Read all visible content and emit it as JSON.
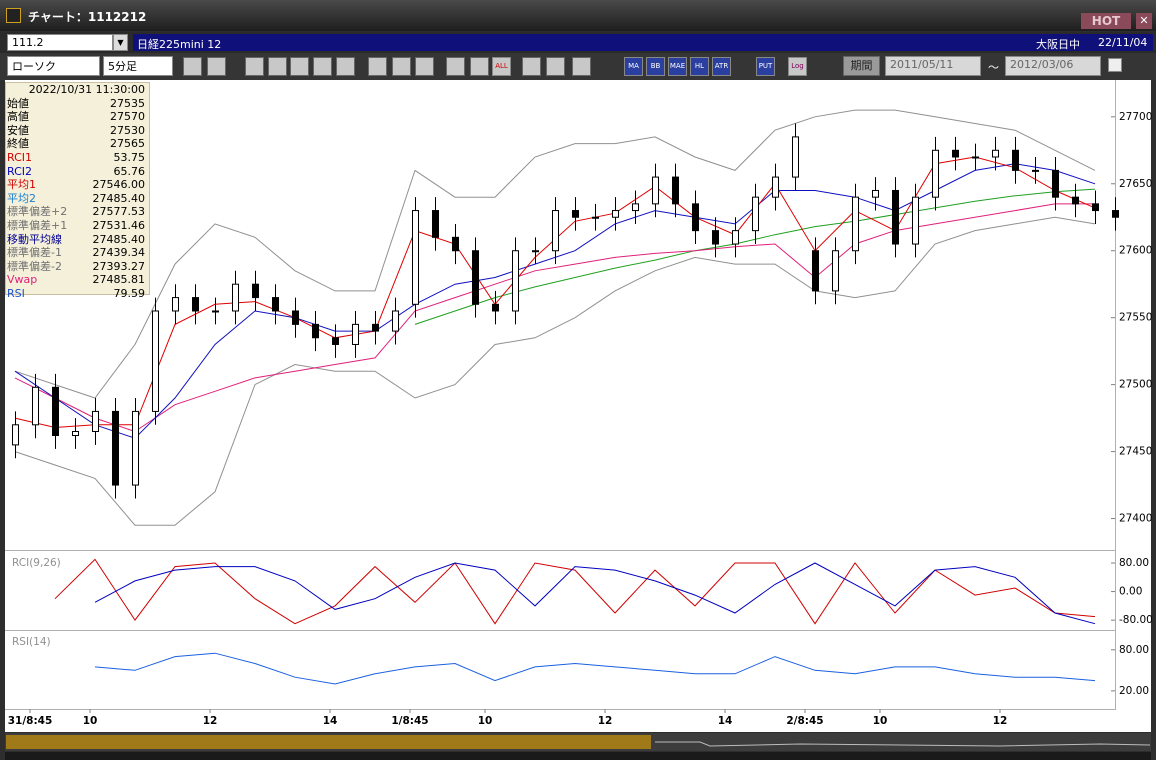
{
  "window": {
    "title": "チャート：1112212",
    "hot": "HOT"
  },
  "toolbar": {
    "code": "111.2",
    "product": "日経225mini 12",
    "market": "大阪日中",
    "date": "22/11/04",
    "chart_type": "ローソク",
    "interval": "5分足",
    "buttons": [
      "ALL",
      "MA",
      "BB",
      "MAE",
      "HL",
      "ATR",
      "PUT",
      "Log"
    ],
    "period": "期間",
    "from": "2011/05/11",
    "tilde": "〜",
    "to": "2012/03/06"
  },
  "info_panel": {
    "time": "2022/10/31 11:30:00",
    "rows": [
      {
        "label": "始値",
        "value": "27535",
        "color": "#000000"
      },
      {
        "label": "高値",
        "value": "27570",
        "color": "#000000"
      },
      {
        "label": "安値",
        "value": "27530",
        "color": "#000000"
      },
      {
        "label": "終値",
        "value": "27565",
        "color": "#000000"
      },
      {
        "label": "RCI1",
        "value": "53.75",
        "color": "#d00000"
      },
      {
        "label": "RCI2",
        "value": "65.76",
        "color": "#0000c0"
      },
      {
        "label": "平均1",
        "value": "27546.00",
        "color": "#d00000"
      },
      {
        "label": "平均2",
        "value": "27485.40",
        "color": "#1a7fd0"
      },
      {
        "label": "標準偏差+2",
        "value": "27577.53",
        "color": "#707070"
      },
      {
        "label": "標準偏差+1",
        "value": "27531.46",
        "color": "#707070"
      },
      {
        "label": "移動平均線",
        "value": "27485.40",
        "color": "#000090"
      },
      {
        "label": "標準偏差-1",
        "value": "27439.34",
        "color": "#707070"
      },
      {
        "label": "標準偏差-2",
        "value": "27393.27",
        "color": "#707070"
      },
      {
        "label": "Vwap",
        "value": "27485.81",
        "color": "#e0207a"
      },
      {
        "label": "RSI",
        "value": "79.59",
        "color": "#1a50d0"
      }
    ]
  },
  "chart_data": [
    {
      "type": "candlestick",
      "x": [
        0,
        4,
        8,
        12,
        16,
        20,
        24,
        28,
        32,
        36,
        40,
        44,
        48,
        52,
        56,
        60,
        64,
        68,
        72,
        76,
        80,
        84,
        88,
        92,
        96,
        100,
        104,
        108,
        112,
        116,
        120,
        124,
        128,
        132,
        136,
        140,
        144,
        148,
        152,
        156,
        160,
        164,
        168,
        172,
        176,
        180,
        184,
        188,
        192,
        196,
        200,
        204,
        208,
        212,
        216,
        220
      ],
      "open": [
        27455,
        27470,
        27498,
        27462,
        27465,
        27480,
        27425,
        27480,
        27555,
        27565,
        27555,
        27555,
        27575,
        27565,
        27555,
        27545,
        27535,
        27530,
        27545,
        27540,
        27560,
        27630,
        27610,
        27600,
        27560,
        27555,
        27600,
        27600,
        27630,
        27625,
        27625,
        27630,
        27635,
        27655,
        27635,
        27615,
        27605,
        27615,
        27640,
        27655,
        27600,
        27570,
        27600,
        27640,
        27645,
        27605,
        27640,
        27675,
        27670,
        27670,
        27675,
        27660,
        27660,
        27640,
        27635,
        27630
      ],
      "high": [
        27480,
        27508,
        27508,
        27475,
        27490,
        27490,
        27490,
        27565,
        27575,
        27575,
        27565,
        27585,
        27585,
        27575,
        27565,
        27555,
        27545,
        27555,
        27555,
        27565,
        27640,
        27640,
        27620,
        27610,
        27570,
        27610,
        27610,
        27640,
        27640,
        27635,
        27640,
        27645,
        27665,
        27665,
        27645,
        27625,
        27625,
        27650,
        27665,
        27695,
        27610,
        27610,
        27650,
        27655,
        27655,
        27650,
        27685,
        27685,
        27680,
        27685,
        27685,
        27670,
        27670,
        27650,
        27645,
        27640
      ],
      "low": [
        27445,
        27460,
        27452,
        27452,
        27455,
        27415,
        27415,
        27470,
        27545,
        27545,
        27545,
        27545,
        27555,
        27545,
        27535,
        27525,
        27520,
        27520,
        27530,
        27530,
        27550,
        27600,
        27590,
        27550,
        27545,
        27545,
        27590,
        27590,
        27615,
        27615,
        27615,
        27620,
        27625,
        27625,
        27605,
        27595,
        27595,
        27605,
        27630,
        27645,
        27560,
        27560,
        27590,
        27630,
        27595,
        27595,
        27630,
        27660,
        27660,
        27660,
        27650,
        27650,
        27630,
        27625,
        27620,
        27615
      ],
      "close": [
        27470,
        27498,
        27462,
        27465,
        27480,
        27425,
        27480,
        27555,
        27565,
        27555,
        27555,
        27575,
        27565,
        27555,
        27545,
        27535,
        27530,
        27545,
        27540,
        27555,
        27630,
        27610,
        27600,
        27560,
        27555,
        27600,
        27600,
        27630,
        27625,
        27625,
        27630,
        27635,
        27655,
        27635,
        27615,
        27605,
        27615,
        27640,
        27655,
        27685,
        27570,
        27600,
        27640,
        27645,
        27605,
        27640,
        27675,
        27670,
        27670,
        27675,
        27660,
        27660,
        27640,
        27635,
        27630,
        27625
      ],
      "series": [
        {
          "color": "#909090",
          "x": [
            0,
            8,
            16,
            24,
            32,
            40,
            48,
            56,
            64,
            72,
            80,
            88,
            96,
            104,
            112,
            120,
            128,
            136,
            144,
            152,
            160,
            168,
            176,
            184,
            192,
            200,
            208,
            216
          ],
          "values": [
            27510,
            27500,
            27490,
            27530,
            27590,
            27620,
            27610,
            27585,
            27570,
            27570,
            27660,
            27640,
            27640,
            27670,
            27680,
            27680,
            27685,
            27670,
            27660,
            27690,
            27700,
            27705,
            27705,
            27700,
            27695,
            27690,
            27675,
            27660
          ]
        },
        {
          "color": "#909090",
          "x": [
            0,
            8,
            16,
            24,
            32,
            40,
            48,
            56,
            64,
            72,
            80,
            88,
            96,
            104,
            112,
            120,
            128,
            136,
            144,
            152,
            160,
            168,
            176,
            184,
            192,
            200,
            208,
            216
          ],
          "values": [
            27450,
            27440,
            27430,
            27395,
            27395,
            27420,
            27500,
            27515,
            27510,
            27510,
            27490,
            27500,
            27530,
            27535,
            27550,
            27570,
            27585,
            27595,
            27590,
            27590,
            27570,
            27565,
            27570,
            27605,
            27615,
            27620,
            27625,
            27620
          ]
        },
        {
          "color": "#20a020",
          "x": [
            0,
            8,
            16,
            24,
            32,
            40,
            48,
            56,
            64,
            72,
            80,
            88,
            96,
            104,
            112,
            120,
            128,
            136,
            144,
            152,
            160,
            168,
            176,
            184,
            192,
            200,
            208,
            216
          ],
          "values": [
            null,
            null,
            null,
            null,
            null,
            null,
            null,
            null,
            null,
            null,
            27545,
            27555,
            27565,
            27573,
            27580,
            27587,
            27593,
            27600,
            27605,
            27612,
            27618,
            27622,
            27627,
            27632,
            27637,
            27641,
            27644,
            27646
          ]
        },
        {
          "color": "#e0207a",
          "x": [
            0,
            8,
            16,
            24,
            32,
            40,
            48,
            56,
            64,
            72,
            80,
            88,
            96,
            104,
            112,
            120,
            128,
            136,
            144,
            152,
            160,
            168,
            176,
            184,
            192,
            200,
            208,
            216
          ],
          "values": [
            27505,
            27490,
            27475,
            27465,
            27485,
            27495,
            27505,
            27510,
            27515,
            27520,
            27555,
            27565,
            27575,
            27585,
            27590,
            27595,
            27598,
            27600,
            27603,
            27605,
            27580,
            27605,
            27615,
            27620,
            27625,
            27630,
            27635,
            27635
          ]
        },
        {
          "color": "#1010c0",
          "x": [
            0,
            8,
            16,
            24,
            32,
            40,
            48,
            56,
            64,
            72,
            80,
            88,
            96,
            104,
            112,
            120,
            128,
            136,
            144,
            152,
            160,
            168,
            176,
            184,
            192,
            200,
            208,
            216
          ],
          "values": [
            27510,
            27490,
            27470,
            27460,
            27490,
            27530,
            27555,
            27550,
            27540,
            27540,
            27560,
            27575,
            27580,
            27590,
            27600,
            27620,
            27630,
            27625,
            27620,
            27645,
            27645,
            27640,
            27630,
            27645,
            27660,
            27665,
            27660,
            27650
          ]
        },
        {
          "color": "#e00000",
          "x": [
            0,
            8,
            16,
            24,
            32,
            40,
            48,
            56,
            64,
            72,
            80,
            88,
            96,
            104,
            112,
            120,
            128,
            136,
            144,
            152,
            160,
            168,
            176,
            184,
            192,
            200,
            208,
            216
          ],
          "values": [
            27475,
            27468,
            27470,
            27470,
            27545,
            27560,
            27562,
            27550,
            27535,
            27540,
            27615,
            27605,
            27560,
            27595,
            27622,
            27628,
            27648,
            27625,
            27612,
            27650,
            27600,
            27630,
            27615,
            27665,
            27670,
            27662,
            27645,
            27632
          ]
        }
      ],
      "xlim": [
        -2,
        220
      ],
      "ylim": [
        27378,
        27726
      ],
      "yticks": [
        27400,
        27450,
        27500,
        27550,
        27600,
        27650,
        27700
      ],
      "xticks": [
        {
          "value": 3,
          "label": "31/8:45"
        },
        {
          "value": 15,
          "label": "10"
        },
        {
          "value": 39,
          "label": "12"
        },
        {
          "value": 63,
          "label": "14"
        },
        {
          "value": 79,
          "label": "1/8:45"
        },
        {
          "value": 94,
          "label": "10"
        },
        {
          "value": 118,
          "label": "12"
        },
        {
          "value": 142,
          "label": "14"
        },
        {
          "value": 158,
          "label": "2/8:45"
        },
        {
          "value": 173,
          "label": "10"
        },
        {
          "value": 197,
          "label": "12"
        }
      ]
    },
    {
      "type": "line",
      "title": "RCI(9,26)",
      "x": [
        0,
        8,
        16,
        24,
        32,
        40,
        48,
        56,
        64,
        72,
        80,
        88,
        96,
        104,
        112,
        120,
        128,
        136,
        144,
        152,
        160,
        168,
        176,
        184,
        192,
        200,
        208,
        216
      ],
      "series": [
        {
          "color": "#d00000",
          "values": [
            null,
            -20,
            90,
            -80,
            70,
            80,
            -20,
            -90,
            -40,
            70,
            -30,
            80,
            -90,
            80,
            60,
            -60,
            60,
            -40,
            80,
            80,
            -90,
            80,
            -60,
            60,
            -10,
            10,
            -60,
            -70
          ]
        },
        {
          "color": "#0000c0",
          "values": [
            null,
            null,
            -30,
            30,
            60,
            70,
            70,
            30,
            -50,
            -20,
            40,
            80,
            60,
            -40,
            70,
            60,
            30,
            -10,
            -60,
            20,
            80,
            20,
            -40,
            60,
            70,
            40,
            -60,
            -90
          ]
        }
      ],
      "xlim": [
        -2,
        220
      ],
      "ylim": [
        -102,
        108
      ],
      "yticks": [
        {
          "value": 80,
          "label": "80.00"
        },
        {
          "value": 0,
          "label": "0.00"
        },
        {
          "value": -80,
          "label": "-80.00"
        }
      ]
    },
    {
      "type": "line",
      "title": "RSI(14)",
      "x": [
        0,
        8,
        16,
        24,
        32,
        40,
        48,
        56,
        64,
        72,
        80,
        88,
        96,
        104,
        112,
        120,
        128,
        136,
        144,
        152,
        160,
        168,
        176,
        184,
        192,
        200,
        208,
        216
      ],
      "series": [
        {
          "color": "#1a60e0",
          "values": [
            null,
            null,
            55,
            50,
            70,
            75,
            60,
            40,
            30,
            45,
            55,
            60,
            35,
            55,
            60,
            55,
            50,
            45,
            45,
            70,
            50,
            45,
            55,
            55,
            45,
            40,
            40,
            35
          ]
        }
      ],
      "xlim": [
        -2,
        220
      ],
      "ylim": [
        -5,
        106
      ],
      "yticks": [
        {
          "value": 80,
          "label": "80.00"
        },
        {
          "value": 20,
          "label": "20.00"
        }
      ]
    }
  ]
}
